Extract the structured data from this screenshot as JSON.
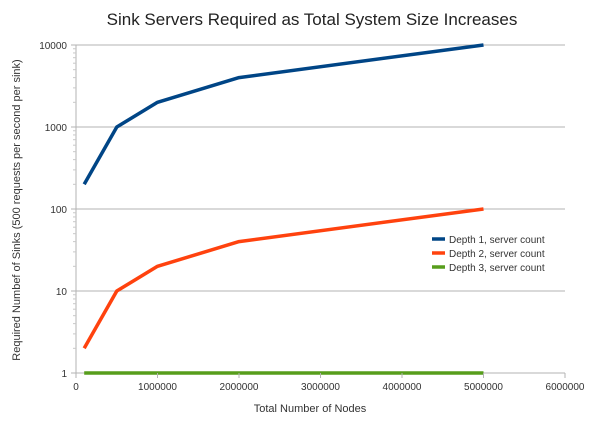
{
  "chart_data": {
    "type": "line",
    "title": "Sink Servers Required as Total System Size Increases",
    "xlabel": "Total Number of Nodes",
    "ylabel": "Required Numbef of Sinks (500 requests per second per sink)",
    "xlim": [
      0,
      6000000
    ],
    "ylim": [
      1,
      10000
    ],
    "yscale": "log",
    "grid": "horizontal",
    "legend_position": "right",
    "x_ticks": [
      "0",
      "1000000",
      "2000000",
      "3000000",
      "4000000",
      "5000000",
      "6000000"
    ],
    "y_ticks": [
      "1",
      "10",
      "100",
      "1000",
      "10000"
    ],
    "x": [
      100000,
      500000,
      1000000,
      2000000,
      5000000
    ],
    "series": [
      {
        "name": "Depth 1, server count",
        "color": "#004586",
        "values": [
          200,
          1000,
          2000,
          4000,
          10000
        ]
      },
      {
        "name": "Depth 2, server count",
        "color": "#ff420e",
        "values": [
          2,
          10,
          20,
          40,
          100
        ]
      },
      {
        "name": "Depth 3, server count",
        "color": "#579d1c",
        "values": [
          1,
          1,
          1,
          1,
          1
        ]
      }
    ]
  }
}
